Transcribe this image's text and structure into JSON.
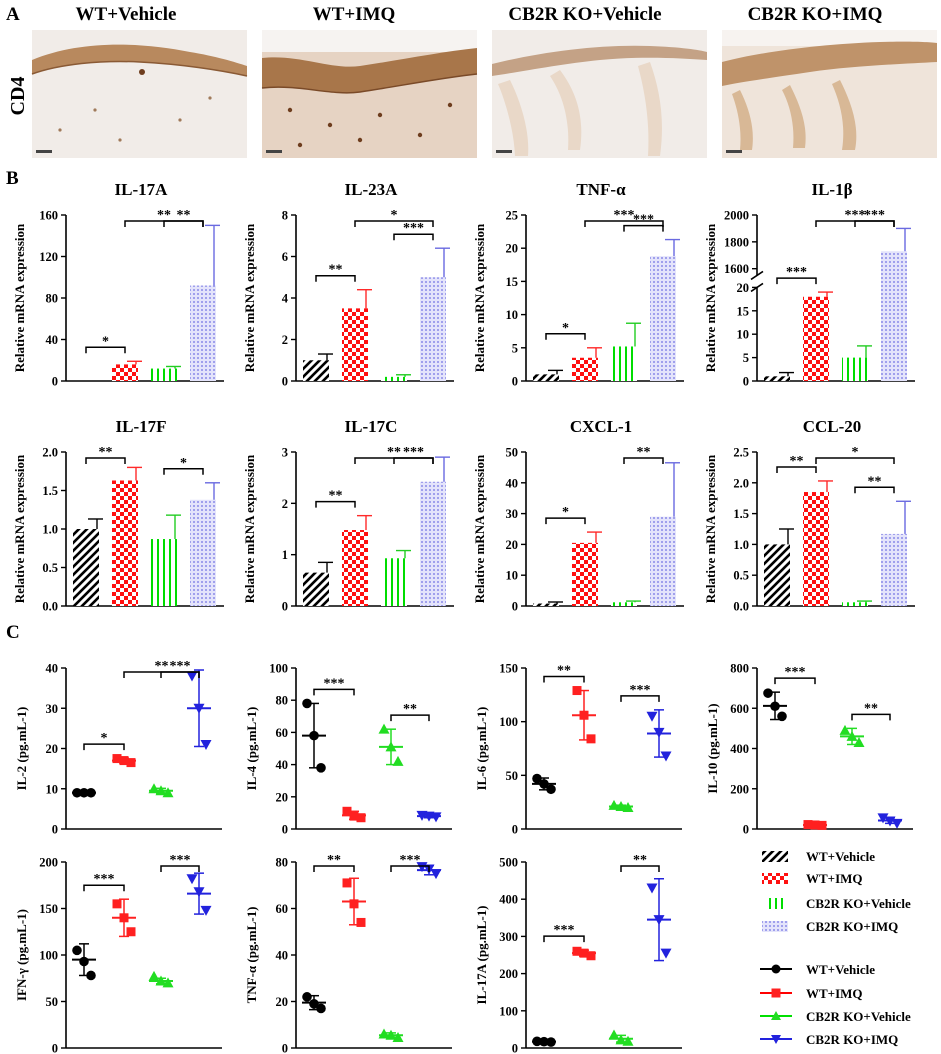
{
  "figure": {
    "panel_labels": [
      "A",
      "B",
      "C"
    ],
    "row_label_a": "CD4",
    "groups": [
      "WT+Vehicle",
      "WT+IMQ",
      "CB2R KO+Vehicle",
      "CB2R KO+IMQ"
    ],
    "colors": {
      "wt_vehicle": "#000000",
      "wt_imq": "#ff0000",
      "ko_vehicle": "#00e000",
      "ko_imq": "#2222dd",
      "ko_imq_bar": "#9a9aee",
      "tissue_stain": "#b07a4a",
      "histo_bg": "#f2ede9"
    }
  },
  "legend_bars": [
    "WT+Vehicle",
    "WT+IMQ",
    "CB2R KO+Vehicle",
    "CB2R KO+IMQ"
  ],
  "legend_points": [
    "WT+Vehicle",
    "WT+IMQ",
    "CB2R KO+Vehicle",
    "CB2R KO+IMQ"
  ],
  "chart_data": [
    {
      "panel": "B",
      "type": "bar",
      "title": "IL-17A",
      "ylabel": "Relative mRNA expression",
      "ylim": [
        0,
        160
      ],
      "yticks": [
        0,
        40,
        80,
        120,
        160
      ],
      "series": [
        {
          "name": "WT+Vehicle",
          "value": 0,
          "error": 0
        },
        {
          "name": "WT+IMQ",
          "value": 16,
          "error": 3
        },
        {
          "name": "CB2R KO+Vehicle",
          "value": 12,
          "error": 2
        },
        {
          "name": "CB2R KO+IMQ",
          "value": 92,
          "error": 58
        }
      ],
      "comparisons": [
        {
          "from": 0,
          "to": 1,
          "label": "*"
        },
        {
          "from": 2,
          "to": 3,
          "label": "**"
        },
        {
          "from": 1,
          "to": 3,
          "label": "**"
        }
      ]
    },
    {
      "panel": "B",
      "type": "bar",
      "title": "IL-23A",
      "ylabel": "Relative mRNA expression",
      "ylim": [
        0,
        8
      ],
      "yticks": [
        0,
        2,
        4,
        6,
        8
      ],
      "series": [
        {
          "name": "WT+Vehicle",
          "value": 1.0,
          "error": 0.3
        },
        {
          "name": "WT+IMQ",
          "value": 3.5,
          "error": 0.9
        },
        {
          "name": "CB2R KO+Vehicle",
          "value": 0.2,
          "error": 0.1
        },
        {
          "name": "CB2R KO+IMQ",
          "value": 5.0,
          "error": 1.4
        }
      ],
      "comparisons": [
        {
          "from": 0,
          "to": 1,
          "label": "**"
        },
        {
          "from": 2,
          "to": 3,
          "label": "***"
        },
        {
          "from": 1,
          "to": 3,
          "label": "*"
        }
      ]
    },
    {
      "panel": "B",
      "type": "bar",
      "title": "TNF-α",
      "ylabel": "Relative mRNA expression",
      "ylim": [
        0,
        25
      ],
      "yticks": [
        0,
        5,
        10,
        15,
        20,
        25
      ],
      "series": [
        {
          "name": "WT+Vehicle",
          "value": 1.0,
          "error": 0.6
        },
        {
          "name": "WT+IMQ",
          "value": 3.5,
          "error": 1.5
        },
        {
          "name": "CB2R KO+Vehicle",
          "value": 5.2,
          "error": 3.5
        },
        {
          "name": "CB2R KO+IMQ",
          "value": 18.8,
          "error": 2.5
        }
      ],
      "comparisons": [
        {
          "from": 0,
          "to": 1,
          "label": "*"
        },
        {
          "from": 2,
          "to": 3,
          "label": "***"
        },
        {
          "from": 1,
          "to": 3,
          "label": "***"
        }
      ]
    },
    {
      "panel": "B",
      "type": "bar",
      "title": "IL-1β",
      "ylabel": "Relative mRNA expression",
      "axis_break": true,
      "lower_ylim": [
        0,
        20
      ],
      "lower_yticks": [
        0,
        5,
        10,
        15,
        20
      ],
      "upper_ylim": [
        1550,
        2000
      ],
      "upper_yticks": [
        1600,
        1800,
        2000
      ],
      "series": [
        {
          "name": "WT+Vehicle",
          "value": 1.0,
          "error": 0.8
        },
        {
          "name": "WT+IMQ",
          "value": 18,
          "error": 1
        },
        {
          "name": "CB2R KO+Vehicle",
          "value": 5.0,
          "error": 2.5
        },
        {
          "name": "CB2R KO+IMQ",
          "value": 1730,
          "error": 170
        }
      ],
      "comparisons": [
        {
          "from": 0,
          "to": 1,
          "label": "***"
        },
        {
          "from": 2,
          "to": 3,
          "label": "***"
        },
        {
          "from": 1,
          "to": 3,
          "label": "***"
        }
      ]
    },
    {
      "panel": "B",
      "type": "bar",
      "title": "IL-17F",
      "ylabel": "Relative mRNA expression",
      "ylim": [
        0,
        2.0
      ],
      "yticks": [
        0,
        0.5,
        1.0,
        1.5,
        2.0
      ],
      "tick_decimals": 1,
      "series": [
        {
          "name": "WT+Vehicle",
          "value": 1.0,
          "error": 0.13
        },
        {
          "name": "WT+IMQ",
          "value": 1.63,
          "error": 0.17
        },
        {
          "name": "CB2R KO+Vehicle",
          "value": 0.87,
          "error": 0.31
        },
        {
          "name": "CB2R KO+IMQ",
          "value": 1.38,
          "error": 0.22
        }
      ],
      "comparisons": [
        {
          "from": 0,
          "to": 1,
          "label": "**"
        },
        {
          "from": 2,
          "to": 3,
          "label": "*"
        }
      ]
    },
    {
      "panel": "B",
      "type": "bar",
      "title": "IL-17C",
      "ylabel": "Relative mRNA expression",
      "ylim": [
        0,
        3
      ],
      "yticks": [
        0,
        1,
        2,
        3
      ],
      "series": [
        {
          "name": "WT+Vehicle",
          "value": 0.65,
          "error": 0.2
        },
        {
          "name": "WT+IMQ",
          "value": 1.48,
          "error": 0.28
        },
        {
          "name": "CB2R KO+Vehicle",
          "value": 0.93,
          "error": 0.15
        },
        {
          "name": "CB2R KO+IMQ",
          "value": 2.42,
          "error": 0.48
        }
      ],
      "comparisons": [
        {
          "from": 0,
          "to": 1,
          "label": "**"
        },
        {
          "from": 2,
          "to": 3,
          "label": "***"
        },
        {
          "from": 1,
          "to": 3,
          "label": "**"
        }
      ]
    },
    {
      "panel": "B",
      "type": "bar",
      "title": "CXCL-1",
      "ylabel": "Relative mRNA expression",
      "ylim": [
        0,
        50
      ],
      "yticks": [
        0,
        10,
        20,
        30,
        40,
        50
      ],
      "series": [
        {
          "name": "WT+Vehicle",
          "value": 0.8,
          "error": 0.5
        },
        {
          "name": "WT+IMQ",
          "value": 20.5,
          "error": 3.5
        },
        {
          "name": "CB2R KO+Vehicle",
          "value": 1.2,
          "error": 0.4
        },
        {
          "name": "CB2R KO+IMQ",
          "value": 29,
          "error": 17.5
        }
      ],
      "comparisons": [
        {
          "from": 0,
          "to": 1,
          "label": "*"
        },
        {
          "from": 2,
          "to": 3,
          "label": "**"
        }
      ]
    },
    {
      "panel": "B",
      "type": "bar",
      "title": "CCL-20",
      "ylabel": "Relative mRNA expression",
      "ylim": [
        0,
        2.5
      ],
      "yticks": [
        0,
        0.5,
        1.0,
        1.5,
        2.0,
        2.5
      ],
      "tick_decimals": 1,
      "series": [
        {
          "name": "WT+Vehicle",
          "value": 1.0,
          "error": 0.25
        },
        {
          "name": "WT+IMQ",
          "value": 1.85,
          "error": 0.18
        },
        {
          "name": "CB2R KO+Vehicle",
          "value": 0.06,
          "error": 0.02
        },
        {
          "name": "CB2R KO+IMQ",
          "value": 1.17,
          "error": 0.53
        }
      ],
      "comparisons": [
        {
          "from": 0,
          "to": 1,
          "label": "**"
        },
        {
          "from": 2,
          "to": 3,
          "label": "**"
        },
        {
          "from": 1,
          "to": 3,
          "label": "*"
        }
      ]
    },
    {
      "panel": "C",
      "type": "scatter",
      "ylabel": "IL-2 (pg.mL-1)",
      "ylim": [
        0,
        40
      ],
      "yticks": [
        0,
        10,
        20,
        30,
        40
      ],
      "groups": [
        {
          "name": "WT+Vehicle",
          "points": [
            9,
            9,
            9
          ],
          "mean": 9,
          "sd": 0.2
        },
        {
          "name": "WT+IMQ",
          "points": [
            17.5,
            17,
            16.5
          ],
          "mean": 17,
          "sd": 0.6
        },
        {
          "name": "CB2R KO+Vehicle",
          "points": [
            10,
            9.5,
            9
          ],
          "mean": 9.5,
          "sd": 0.6
        },
        {
          "name": "CB2R KO+IMQ",
          "points": [
            38,
            30,
            21
          ],
          "mean": 30,
          "sd": 9.5
        }
      ],
      "comparisons": [
        {
          "from": 0,
          "to": 1,
          "label": "*"
        },
        {
          "from": 2,
          "to": 3,
          "label": "***"
        },
        {
          "from": 1,
          "to": 3,
          "label": "**"
        }
      ]
    },
    {
      "panel": "C",
      "type": "scatter",
      "ylabel": "IL-4 (pg.mL-1)",
      "ylim": [
        0,
        100
      ],
      "yticks": [
        0,
        20,
        40,
        60,
        80,
        100
      ],
      "groups": [
        {
          "name": "WT+Vehicle",
          "points": [
            78,
            58,
            38
          ],
          "mean": 58,
          "sd": 20
        },
        {
          "name": "WT+IMQ",
          "points": [
            11,
            8,
            7
          ],
          "mean": 8.5,
          "sd": 2.5
        },
        {
          "name": "CB2R KO+Vehicle",
          "points": [
            62,
            51,
            42
          ],
          "mean": 51,
          "sd": 11
        },
        {
          "name": "CB2R KO+IMQ",
          "points": [
            8.5,
            8,
            7.5
          ],
          "mean": 8,
          "sd": 1
        }
      ],
      "comparisons": [
        {
          "from": 0,
          "to": 1,
          "label": "***"
        },
        {
          "from": 2,
          "to": 3,
          "label": "**"
        }
      ]
    },
    {
      "panel": "C",
      "type": "scatter",
      "ylabel": "IL-6 (pg.mL-1)",
      "ylim": [
        0,
        150
      ],
      "yticks": [
        0,
        50,
        100,
        150
      ],
      "groups": [
        {
          "name": "WT+Vehicle",
          "points": [
            47,
            42,
            37
          ],
          "mean": 42,
          "sd": 5.5
        },
        {
          "name": "WT+IMQ",
          "points": [
            129,
            106,
            84
          ],
          "mean": 106,
          "sd": 23
        },
        {
          "name": "CB2R KO+Vehicle",
          "points": [
            22,
            21,
            20
          ],
          "mean": 21,
          "sd": 1.2
        },
        {
          "name": "CB2R KO+IMQ",
          "points": [
            105,
            90,
            68
          ],
          "mean": 89,
          "sd": 22
        }
      ],
      "comparisons": [
        {
          "from": 0,
          "to": 1,
          "label": "**"
        },
        {
          "from": 2,
          "to": 3,
          "label": "***"
        }
      ]
    },
    {
      "panel": "C",
      "type": "scatter",
      "ylabel": "IL-10 (pg.mL-1)",
      "ylim": [
        0,
        800
      ],
      "yticks": [
        0,
        200,
        400,
        600,
        800
      ],
      "groups": [
        {
          "name": "WT+Vehicle",
          "points": [
            675,
            610,
            560
          ],
          "mean": 612,
          "sd": 68
        },
        {
          "name": "WT+IMQ",
          "points": [
            22,
            20,
            18
          ],
          "mean": 20,
          "sd": 3
        },
        {
          "name": "CB2R KO+Vehicle",
          "points": [
            490,
            460,
            430
          ],
          "mean": 460,
          "sd": 40
        },
        {
          "name": "CB2R KO+IMQ",
          "points": [
            55,
            40,
            28
          ],
          "mean": 42,
          "sd": 14
        }
      ],
      "comparisons": [
        {
          "from": 0,
          "to": 1,
          "label": "***"
        },
        {
          "from": 2,
          "to": 3,
          "label": "**"
        }
      ]
    },
    {
      "panel": "C",
      "type": "scatter",
      "ylabel": "IFN-γ (pg.mL-1)",
      "ylim": [
        0,
        200
      ],
      "yticks": [
        0,
        50,
        100,
        150,
        200
      ],
      "groups": [
        {
          "name": "WT+Vehicle",
          "points": [
            105,
            93,
            78
          ],
          "mean": 95,
          "sd": 17
        },
        {
          "name": "WT+IMQ",
          "points": [
            155,
            140,
            125
          ],
          "mean": 140,
          "sd": 20
        },
        {
          "name": "CB2R KO+Vehicle",
          "points": [
            77,
            72,
            70
          ],
          "mean": 72,
          "sd": 3
        },
        {
          "name": "CB2R KO+IMQ",
          "points": [
            182,
            168,
            148
          ],
          "mean": 166,
          "sd": 22
        }
      ],
      "comparisons": [
        {
          "from": 0,
          "to": 1,
          "label": "***"
        },
        {
          "from": 2,
          "to": 3,
          "label": "***"
        }
      ]
    },
    {
      "panel": "C",
      "type": "scatter",
      "ylabel": "TNF-α (pg.mL-1)",
      "ylim": [
        0,
        80
      ],
      "yticks": [
        0,
        20,
        40,
        60,
        80
      ],
      "groups": [
        {
          "name": "WT+Vehicle",
          "points": [
            22,
            19,
            17
          ],
          "mean": 19.5,
          "sd": 3
        },
        {
          "name": "WT+IMQ",
          "points": [
            71,
            62,
            54
          ],
          "mean": 63,
          "sd": 10
        },
        {
          "name": "CB2R KO+Vehicle",
          "points": [
            6,
            5.5,
            4.5
          ],
          "mean": 5.5,
          "sd": 1
        },
        {
          "name": "CB2R KO+IMQ",
          "points": [
            78,
            77,
            75
          ],
          "mean": 76.5,
          "sd": 2
        }
      ],
      "comparisons": [
        {
          "from": 0,
          "to": 1,
          "label": "**"
        },
        {
          "from": 2,
          "to": 3,
          "label": "***"
        }
      ]
    },
    {
      "panel": "C",
      "type": "scatter",
      "ylabel": "IL-17A (pg.mL-1)",
      "ylim": [
        0,
        500
      ],
      "yticks": [
        0,
        100,
        200,
        300,
        400,
        500
      ],
      "groups": [
        {
          "name": "WT+Vehicle",
          "points": [
            18,
            17,
            16
          ],
          "mean": 17,
          "sd": 2
        },
        {
          "name": "WT+IMQ",
          "points": [
            260,
            255,
            248
          ],
          "mean": 255,
          "sd": 8
        },
        {
          "name": "CB2R KO+Vehicle",
          "points": [
            35,
            22,
            18
          ],
          "mean": 25,
          "sd": 9
        },
        {
          "name": "CB2R KO+IMQ",
          "points": [
            430,
            345,
            255
          ],
          "mean": 345,
          "sd": 110
        }
      ],
      "comparisons": [
        {
          "from": 0,
          "to": 1,
          "label": "***"
        },
        {
          "from": 2,
          "to": 3,
          "label": "**"
        }
      ]
    }
  ]
}
